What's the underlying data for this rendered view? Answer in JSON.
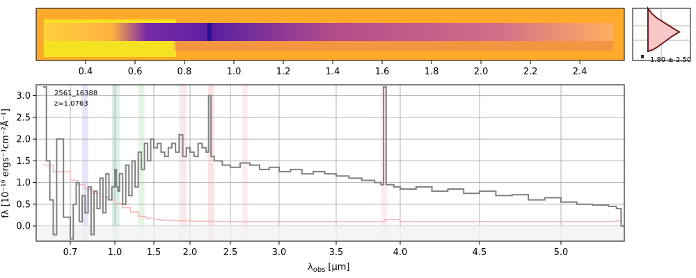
{
  "chart_data": [
    {
      "type": "heatmap",
      "panel": "2D spectrum",
      "x_tick_labels": [
        "0.4",
        "0.6",
        "0.8",
        "1.0",
        "1.2",
        "1.4",
        "1.6",
        "1.8",
        "2.0",
        "2.2",
        "2.4"
      ],
      "x_tick_values": [
        0.4,
        0.6,
        0.8,
        1.0,
        1.2,
        1.4,
        1.6,
        1.8,
        2.0,
        2.2,
        2.4
      ],
      "colormap": "plasma",
      "background": "#ffaa2a"
    },
    {
      "type": "area",
      "panel": "redshift probability",
      "annotation": "1.80 ± 2.50",
      "fill_color": "#f8c8c8",
      "line_color": "#6b1a1a"
    },
    {
      "type": "line",
      "panel": "1D spectrum",
      "title": "",
      "annotation": [
        "2561_16388",
        "z=1.0763"
      ],
      "xlabel_main": "λ",
      "xlabel_sub": "obs",
      "xlabel_unit": "[μm]",
      "ylabel": "fλ [10⁻¹⁹ ergs⁻¹cm⁻²Å⁻¹]",
      "x_ticks": [
        "0.7",
        "1.0",
        "1.5",
        "2.0",
        "2.5",
        "3.0",
        "3.5",
        "4.0",
        "4.5",
        "5.0"
      ],
      "x_tick_values": [
        0.7,
        1.0,
        1.5,
        2.0,
        2.5,
        3.0,
        3.5,
        4.0,
        4.5,
        5.0
      ],
      "y_ticks": [
        "0.0",
        "0.5",
        "1.0",
        "1.5",
        "2.0",
        "2.5",
        "3.0"
      ],
      "y_tick_values": [
        0,
        0.5,
        1.0,
        1.5,
        2.0,
        2.5,
        3.0
      ],
      "xlim": [
        0.6,
        5.4
      ],
      "ylim": [
        -0.35,
        3.25
      ],
      "grid": true,
      "series": [
        {
          "color": "#808080",
          "x": [
            0.62,
            0.63,
            0.64,
            0.65,
            0.66,
            0.68,
            0.7,
            0.72,
            0.74,
            0.76,
            0.78,
            0.8,
            0.82,
            0.84,
            0.86,
            0.88,
            0.9,
            0.92,
            0.94,
            0.96,
            0.98,
            1.0,
            1.02,
            1.04,
            1.06,
            1.1,
            1.14,
            1.18,
            1.22,
            1.26,
            1.3,
            1.34,
            1.38,
            1.42,
            1.46,
            1.5,
            1.55,
            1.6,
            1.65,
            1.7,
            1.75,
            1.8,
            1.85,
            1.9,
            1.95,
            2.0,
            2.05,
            2.1,
            2.15,
            2.2,
            2.23,
            2.26,
            2.3,
            2.4,
            2.5,
            2.6,
            2.7,
            2.8,
            2.9,
            3.0,
            3.1,
            3.2,
            3.3,
            3.4,
            3.5,
            3.6,
            3.7,
            3.8,
            3.85,
            3.87,
            3.89,
            3.95,
            4.0,
            4.1,
            4.2,
            4.3,
            4.4,
            4.5,
            4.6,
            4.7,
            4.8,
            4.9,
            5.0,
            5.1,
            5.2,
            5.3,
            5.35,
            5.38,
            5.4
          ],
          "y": [
            3.2,
            1.5,
            0.6,
            -0.2,
            2.0,
            0.2,
            -0.3,
            0.5,
            1.0,
            0.1,
            0.7,
            0.3,
            0.9,
            -0.2,
            0.8,
            0.4,
            1.1,
            0.3,
            1.2,
            0.6,
            0.9,
            1.3,
            0.9,
            0.8,
            1.2,
            0.5,
            1.4,
            0.7,
            1.5,
            0.9,
            1.7,
            1.3,
            1.9,
            1.5,
            2.0,
            1.8,
            1.9,
            1.7,
            1.6,
            1.8,
            1.9,
            1.7,
            2.1,
            1.6,
            1.8,
            1.7,
            1.6,
            1.9,
            1.8,
            1.7,
            3.0,
            1.6,
            1.5,
            1.4,
            1.35,
            1.45,
            1.4,
            1.3,
            1.35,
            1.25,
            1.3,
            1.2,
            1.25,
            1.2,
            1.15,
            1.1,
            1.05,
            1.0,
            0.95,
            3.2,
            0.95,
            0.9,
            0.85,
            0.9,
            0.8,
            0.85,
            0.75,
            0.8,
            0.7,
            0.72,
            0.6,
            0.65,
            0.55,
            0.5,
            0.48,
            0.45,
            0.4,
            0.0,
            0.0
          ]
        },
        {
          "color": "#f4b8b8",
          "x": [
            0.62,
            0.65,
            0.7,
            0.75,
            0.8,
            0.85,
            0.9,
            0.95,
            1.0,
            1.1,
            1.2,
            1.3,
            1.4,
            1.5,
            1.6,
            1.8,
            2.0,
            2.3,
            2.6,
            3.0,
            3.5,
            3.87,
            3.88,
            4.0,
            4.5,
            5.0,
            5.2,
            5.35,
            5.38
          ],
          "y": [
            1.4,
            1.25,
            1.05,
            0.95,
            0.85,
            0.75,
            0.68,
            0.6,
            0.52,
            0.42,
            0.32,
            0.22,
            0.18,
            0.15,
            0.13,
            0.12,
            0.11,
            0.1,
            0.1,
            0.1,
            0.1,
            0.1,
            0.15,
            0.1,
            0.1,
            0.1,
            0.1,
            0.12,
            0.05
          ]
        }
      ],
      "shaded_bands": [
        {
          "x0": 0.78,
          "x1": 0.82,
          "color": "#c8c8f0"
        },
        {
          "x0": 0.98,
          "x1": 1.06,
          "color": "#a8dcc8"
        },
        {
          "x0": 1.3,
          "x1": 1.38,
          "color": "#c8e6c8"
        },
        {
          "x0": 1.85,
          "x1": 1.95,
          "color": "#f0d0d0"
        },
        {
          "x0": 2.22,
          "x1": 2.3,
          "color": "#f4c4c4"
        },
        {
          "x0": 2.62,
          "x1": 2.68,
          "color": "#f8d8e4"
        },
        {
          "x0": 3.85,
          "x1": 3.9,
          "color": "#f8d8e4"
        }
      ]
    }
  ]
}
